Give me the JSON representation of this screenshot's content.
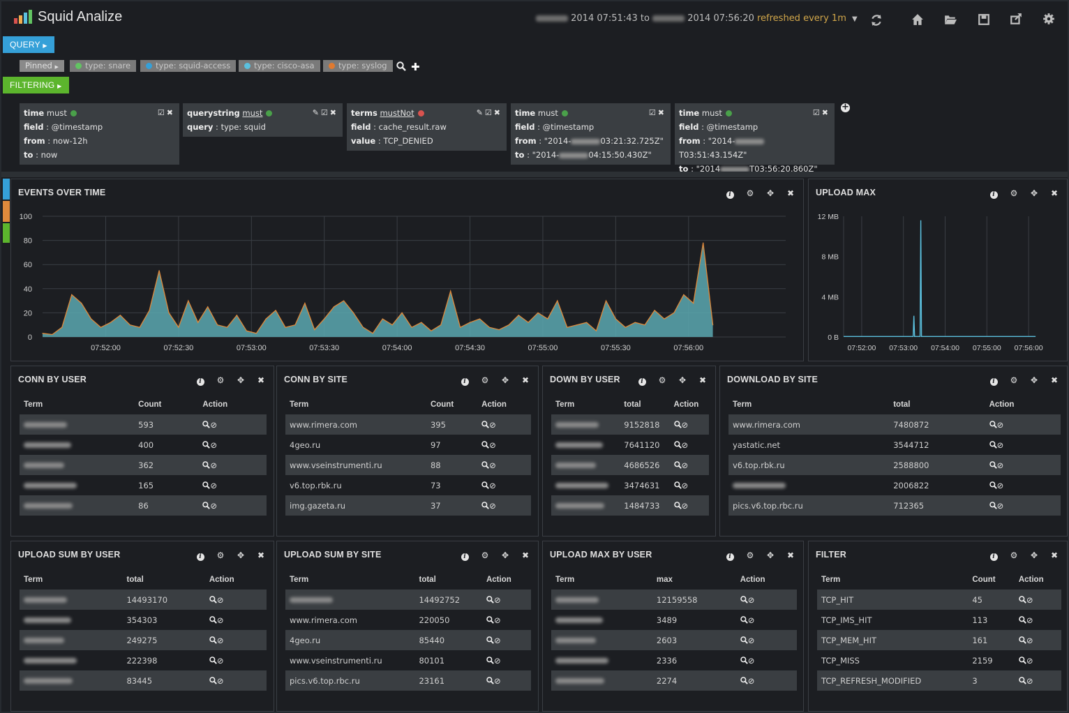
{
  "app": {
    "title": "Squid Analize"
  },
  "timerange": {
    "from": "2014 07:51:43",
    "to_word": "to",
    "to": "2014 07:56:20",
    "refresh": "refreshed every 1m"
  },
  "nav_icons": [
    "refresh-icon",
    "home-icon",
    "folder-open-icon",
    "save-icon",
    "share-icon",
    "gear-icon"
  ],
  "query": {
    "label": "QUERY",
    "pinned": "Pinned",
    "chips": [
      {
        "label": "type: snare",
        "color": "#62c462"
      },
      {
        "label": "type: squid-access",
        "color": "#35a0d8"
      },
      {
        "label": "type: cisco-asa",
        "color": "#5bc0de"
      },
      {
        "label": "type: syslog",
        "color": "#e07a30"
      }
    ]
  },
  "filtering": {
    "label": "FILTERING",
    "filters": [
      {
        "type": "time",
        "mode": "must",
        "status": "#4aa04a",
        "rows": [
          [
            "field",
            ": @timestamp"
          ],
          [
            "from",
            ": now-12h"
          ],
          [
            "to",
            ": now"
          ]
        ]
      },
      {
        "type": "querystring",
        "mode": "must",
        "status": "#4aa04a",
        "rows": [
          [
            "query",
            ": type: squid"
          ]
        ]
      },
      {
        "type": "terms",
        "mode": "mustNot",
        "status": "#d9534f",
        "rows": [
          [
            "field",
            ": cache_result.raw"
          ],
          [
            "value",
            ": TCP_DENIED"
          ]
        ]
      },
      {
        "type": "time",
        "mode": "must",
        "status": "#4aa04a",
        "rows": [
          [
            "field",
            ": @timestamp"
          ],
          [
            "from",
            ": \"2014-",
            "03:21:32.725Z\""
          ],
          [
            "to",
            ": \"2014-",
            "04:15:50.430Z\""
          ]
        ]
      },
      {
        "type": "time",
        "mode": "must",
        "status": "#4aa04a",
        "rows": [
          [
            "field",
            ": @timestamp"
          ],
          [
            "from",
            ": \"2014-",
            "T03:51:43.154Z\""
          ],
          [
            "to",
            ": \"2014",
            "T03:56:20.860Z\""
          ]
        ]
      }
    ]
  },
  "panels": {
    "events": {
      "title": "EVENTS OVER TIME"
    },
    "upload_max": {
      "title": "UPLOAD MAX"
    },
    "conn_user": {
      "title": "CONN BY USER",
      "cols": [
        "Term",
        "Count",
        "Action"
      ],
      "rows": [
        {
          "term": "",
          "v": "593"
        },
        {
          "term": "",
          "v": "400"
        },
        {
          "term": "",
          "v": "362"
        },
        {
          "term": "",
          "v": "165"
        },
        {
          "term": "",
          "v": "86"
        }
      ]
    },
    "conn_site": {
      "title": "CONN BY SITE",
      "cols": [
        "Term",
        "Count",
        "Action"
      ],
      "rows": [
        {
          "term": "www.rimera.com",
          "v": "395"
        },
        {
          "term": "4geo.ru",
          "v": "97"
        },
        {
          "term": "www.vseinstrumenti.ru",
          "v": "88"
        },
        {
          "term": "v6.top.rbk.ru",
          "v": "73"
        },
        {
          "term": "img.gazeta.ru",
          "v": "37"
        }
      ]
    },
    "down_user": {
      "title": "DOWN BY USER",
      "cols": [
        "Term",
        "total",
        "Action"
      ],
      "rows": [
        {
          "term": "",
          "v": "9152818"
        },
        {
          "term": "",
          "v": "7641120"
        },
        {
          "term": "",
          "v": "4686526"
        },
        {
          "term": "",
          "v": "3474631"
        },
        {
          "term": "",
          "v": "1484733"
        }
      ]
    },
    "down_site": {
      "title": "DOWNLOAD BY SITE",
      "cols": [
        "Term",
        "total",
        "Action"
      ],
      "rows": [
        {
          "term": "www.rimera.com",
          "v": "7480872"
        },
        {
          "term": "yastatic.net",
          "v": "3544712"
        },
        {
          "term": "v6.top.rbk.ru",
          "v": "2588800"
        },
        {
          "term": "",
          "v": "2006822"
        },
        {
          "term": "pics.v6.top.rbc.ru",
          "v": "712365"
        }
      ]
    },
    "up_sum_user": {
      "title": "UPLOAD SUM BY USER",
      "cols": [
        "Term",
        "total",
        "Action"
      ],
      "rows": [
        {
          "term": "",
          "v": "14493170"
        },
        {
          "term": "",
          "v": "354303"
        },
        {
          "term": "",
          "v": "249275"
        },
        {
          "term": "",
          "v": "222398"
        },
        {
          "term": "",
          "v": "83445"
        }
      ]
    },
    "up_sum_site": {
      "title": "UPLOAD SUM BY SITE",
      "cols": [
        "Term",
        "total",
        "Action"
      ],
      "rows": [
        {
          "term": "",
          "v": "14492752"
        },
        {
          "term": "www.rimera.com",
          "v": "220050"
        },
        {
          "term": "4geo.ru",
          "v": "85440"
        },
        {
          "term": "www.vseinstrumenti.ru",
          "v": "80101"
        },
        {
          "term": "pics.v6.top.rbc.ru",
          "v": "23161"
        }
      ]
    },
    "up_max_user": {
      "title": "UPLOAD MAX BY USER",
      "cols": [
        "Term",
        "max",
        "Action"
      ],
      "rows": [
        {
          "term": "",
          "v": "12159558"
        },
        {
          "term": "",
          "v": "3489"
        },
        {
          "term": "",
          "v": "2603"
        },
        {
          "term": "",
          "v": "2336"
        },
        {
          "term": "",
          "v": "2274"
        }
      ]
    },
    "filter": {
      "title": "FILTER",
      "cols": [
        "Term",
        "Count",
        "Action"
      ],
      "rows": [
        {
          "term": "TCP_HIT",
          "v": "45"
        },
        {
          "term": "TCP_IMS_HIT",
          "v": "113"
        },
        {
          "term": "TCP_MEM_HIT",
          "v": "161"
        },
        {
          "term": "TCP_MISS",
          "v": "2159"
        },
        {
          "term": "TCP_REFRESH_MODIFIED",
          "v": "3"
        }
      ]
    }
  },
  "chart_data": [
    {
      "type": "area",
      "title": "EVENTS OVER TIME",
      "x_ticks": [
        "07:52:00",
        "07:52:30",
        "07:53:00",
        "07:53:30",
        "07:54:00",
        "07:54:30",
        "07:55:00",
        "07:55:30",
        "07:56:00"
      ],
      "y_ticks": [
        "0",
        "20",
        "40",
        "60",
        "80",
        "100"
      ],
      "ylim": [
        0,
        100
      ],
      "colors": {
        "fill": "#5aa8b0",
        "line": "#e08a3c"
      },
      "x_seconds": [
        0,
        4,
        8,
        12,
        16,
        20,
        24,
        28,
        32,
        36,
        40,
        44,
        48,
        52,
        56,
        60,
        64,
        68,
        72,
        76,
        80,
        84,
        88,
        92,
        96,
        100,
        104,
        108,
        112,
        116,
        120,
        124,
        128,
        132,
        136,
        140,
        144,
        148,
        152,
        156,
        160,
        164,
        168,
        172,
        176,
        180,
        184,
        188,
        192,
        196,
        200,
        204,
        208,
        212,
        216,
        220,
        224,
        228,
        232,
        236,
        240,
        244,
        248,
        252,
        256,
        260,
        264,
        268,
        272,
        276
      ],
      "values": [
        3,
        2,
        8,
        35,
        28,
        15,
        8,
        12,
        18,
        10,
        8,
        22,
        55,
        20,
        8,
        30,
        12,
        25,
        10,
        8,
        18,
        5,
        3,
        15,
        22,
        8,
        10,
        28,
        6,
        15,
        25,
        30,
        20,
        8,
        3,
        15,
        10,
        20,
        8,
        12,
        5,
        10,
        38,
        8,
        12,
        15,
        8,
        6,
        10,
        18,
        12,
        20,
        15,
        30,
        8,
        10,
        12,
        5,
        30,
        15,
        8,
        12,
        10,
        22,
        15,
        20,
        35,
        28,
        78,
        10
      ]
    },
    {
      "type": "line",
      "title": "UPLOAD MAX",
      "x_ticks": [
        "07:52:00",
        "07:53:00",
        "07:54:00",
        "07:55:00",
        "07:56:00"
      ],
      "y_ticks": [
        "0 B",
        "4 MB",
        "8 MB",
        "12 MB"
      ],
      "ylim": [
        0,
        12
      ],
      "colors": {
        "line": "#5bc0de"
      },
      "x_seconds": [
        0,
        60,
        100,
        101,
        102,
        110,
        111,
        112,
        120,
        180,
        240,
        276
      ],
      "values_mb": [
        0.05,
        0.05,
        0.05,
        2.1,
        0.05,
        0.05,
        11.6,
        0.05,
        0.05,
        0.05,
        0.05,
        0.05
      ]
    }
  ]
}
